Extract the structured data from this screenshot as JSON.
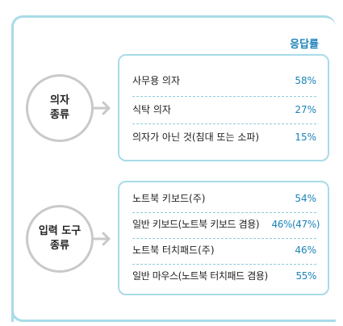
{
  "chart_data": {
    "type": "table",
    "column_header": "응답률",
    "groups": [
      {
        "category_lines": [
          "의자",
          "종류"
        ],
        "rows": [
          {
            "label": "사무용 의자",
            "value": "58%"
          },
          {
            "label": "식탁 의자",
            "value": "27%"
          },
          {
            "label": "의자가 아닌 것(침대 또는 소파)",
            "value": "15%"
          }
        ]
      },
      {
        "category_lines": [
          "입력 도구",
          "종류"
        ],
        "rows": [
          {
            "label": "노트북 키보드(주)",
            "value": "54%"
          },
          {
            "label": "일반 키보드(노트북 키보드 겸용)",
            "value": "46%(47%)"
          },
          {
            "label": "노트북 터치패드(주)",
            "value": "46%"
          },
          {
            "label": "일반 마우스(노트북 터치패드 겸용)",
            "value": "55%"
          }
        ]
      }
    ]
  },
  "colors": {
    "accent": "#1b83b8",
    "frame": "#a9dbe8",
    "circle_border": "#c9c9c9"
  }
}
